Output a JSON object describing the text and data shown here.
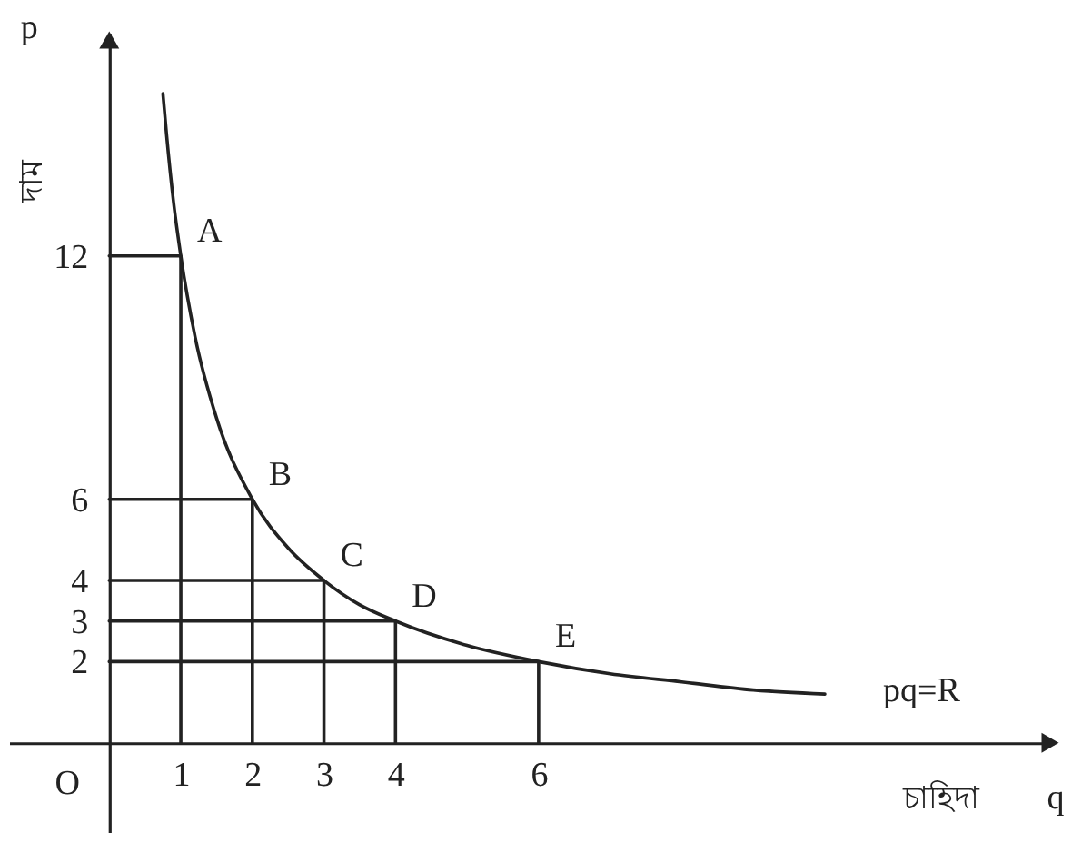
{
  "chart_data": {
    "type": "line",
    "xlabel": "চাহিদা",
    "ylabel": "দাম",
    "annotations": [
      "p",
      "q",
      "O",
      {
        "text": "A",
        "x": 1,
        "y": 12
      },
      {
        "text": "B",
        "x": 2,
        "y": 6
      },
      {
        "text": "C",
        "x": 3,
        "y": 4
      },
      {
        "text": "D",
        "x": 4,
        "y": 3
      },
      {
        "text": "E",
        "x": 6,
        "y": 2
      },
      {
        "text": "pq=R",
        "x": 10,
        "y": 1.2
      }
    ],
    "series": [
      {
        "color": "#222222",
        "x": [
          0.75,
          0.8,
          0.9,
          1,
          1.2,
          1.5,
          2,
          2.5,
          3,
          3.5,
          4,
          5,
          6,
          7,
          8,
          9,
          10
        ],
        "values": [
          16,
          15,
          13.3,
          12,
          10,
          8,
          6,
          4.8,
          4,
          3.4,
          3,
          2.4,
          2,
          1.7,
          1.5,
          1.3,
          1.2
        ]
      },
      {
        "color": "#222222",
        "x": [
          0,
          1,
          1
        ],
        "values": [
          12,
          12,
          0
        ]
      },
      {
        "color": "#222222",
        "x": [
          0,
          2,
          2
        ],
        "values": [
          6,
          6,
          0
        ]
      },
      {
        "color": "#222222",
        "x": [
          0,
          3,
          3
        ],
        "values": [
          4,
          4,
          0
        ]
      },
      {
        "color": "#222222",
        "x": [
          0,
          4,
          4
        ],
        "values": [
          3,
          3,
          0
        ]
      },
      {
        "color": "#222222",
        "x": [
          0,
          6,
          6
        ],
        "values": [
          2,
          2,
          0
        ]
      }
    ],
    "xlim": [
      -1.4,
      13.2
    ],
    "ylim": [
      -2.2,
      17.5
    ],
    "xticks": [
      1,
      2,
      3,
      4,
      6
    ],
    "yticks": [
      2,
      3,
      4,
      6,
      12
    ],
    "grid": false,
    "marker": "none",
    "line_style": "solid"
  }
}
